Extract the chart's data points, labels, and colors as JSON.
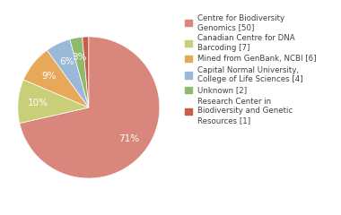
{
  "labels": [
    "Centre for Biodiversity\nGenomics [50]",
    "Canadian Centre for DNA\nBarcoding [7]",
    "Mined from GenBank, NCBI [6]",
    "Capital Normal University,\nCollege of Life Sciences [4]",
    "Unknown [2]",
    "Research Center in\nBiodiversity and Genetic\nResources [1]"
  ],
  "values": [
    50,
    7,
    6,
    4,
    2,
    1
  ],
  "colors": [
    "#d9867c",
    "#c8cf78",
    "#e8a85a",
    "#9ab8d8",
    "#8fba6e",
    "#cc5c4a"
  ],
  "background_color": "#ffffff",
  "text_color": "#404040",
  "fontsize": 7.5
}
